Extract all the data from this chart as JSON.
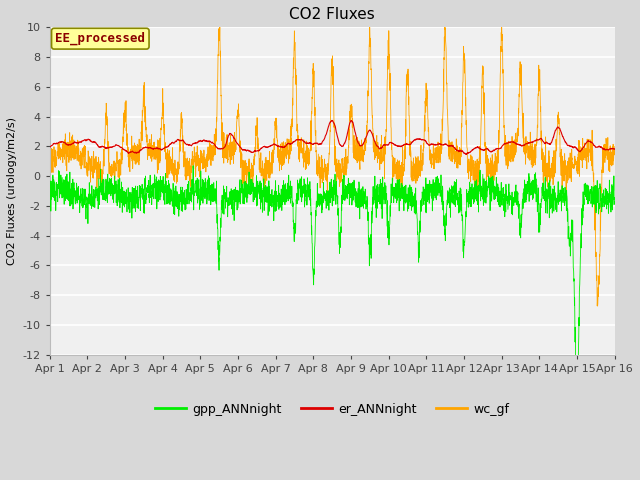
{
  "title": "CO2 Fluxes",
  "ylabel": "CO2 Fluxes (urology/m2/s)",
  "xlabel": "",
  "ylim": [
    -12,
    10
  ],
  "yticks": [
    -12,
    -10,
    -8,
    -6,
    -4,
    -2,
    0,
    2,
    4,
    6,
    8,
    10
  ],
  "xtick_labels": [
    "Apr 1",
    "Apr 2",
    "Apr 3",
    "Apr 4",
    "Apr 5",
    "Apr 6",
    "Apr 7",
    "Apr 8",
    "Apr 9",
    "Apr 10",
    "Apr 11",
    "Apr 12",
    "Apr 13",
    "Apr 14",
    "Apr 15",
    "Apr 16"
  ],
  "n_points": 2880,
  "color_gpp": "#00EE00",
  "color_er": "#DD0000",
  "color_wc": "#FFA500",
  "legend_labels": [
    "gpp_ANNnight",
    "er_ANNnight",
    "wc_gf"
  ],
  "watermark_text": "EE_processed",
  "watermark_color": "#8B0000",
  "watermark_bg": "#FFFF99",
  "watermark_edge": "#888800",
  "bg_color": "#D8D8D8",
  "plot_bg": "#F0F0F0",
  "title_fontsize": 11,
  "label_fontsize": 8,
  "tick_fontsize": 8
}
